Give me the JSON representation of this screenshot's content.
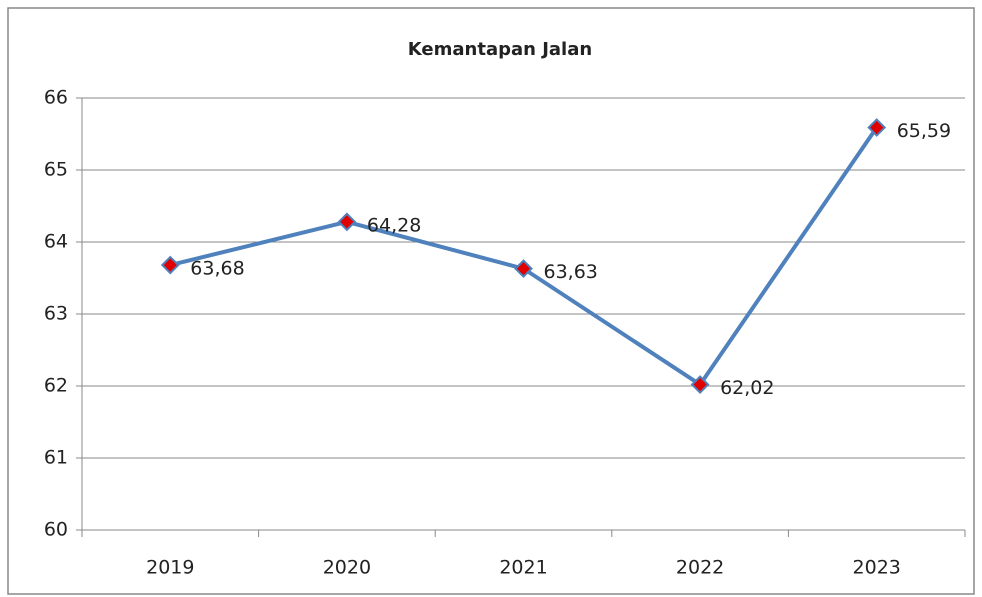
{
  "chart_data": {
    "type": "line",
    "title": "Kemantapan Jalan",
    "categories": [
      "2019",
      "2020",
      "2021",
      "2022",
      "2023"
    ],
    "series": [
      {
        "name": "Kemantapan Jalan",
        "color": "#4f81bd",
        "values": [
          63.68,
          64.28,
          63.63,
          62.02,
          65.59
        ],
        "value_labels": [
          "63,68",
          "64,28",
          "63,63",
          "62,02",
          "65,59"
        ]
      }
    ],
    "marker_color": "#e00000",
    "ylim": [
      60,
      66
    ],
    "yticks": [
      60,
      61,
      62,
      63,
      64,
      65,
      66
    ],
    "grid": true
  }
}
